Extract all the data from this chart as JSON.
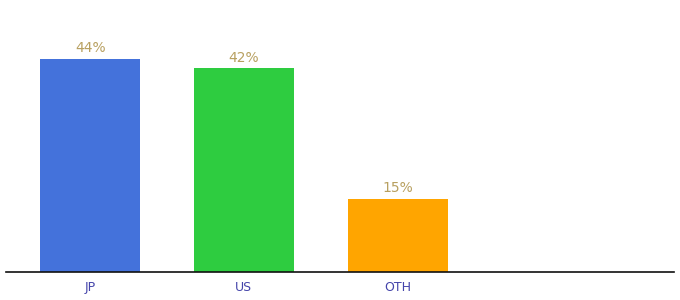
{
  "categories": [
    "JP",
    "US",
    "OTH"
  ],
  "values": [
    44,
    42,
    15
  ],
  "bar_colors": [
    "#4472db",
    "#2ecc40",
    "#ffa500"
  ],
  "labels": [
    "44%",
    "42%",
    "15%"
  ],
  "label_color": "#b8a060",
  "ylim": [
    0,
    55
  ],
  "background_color": "#ffffff",
  "label_fontsize": 10,
  "tick_fontsize": 9,
  "tick_color": "#4444aa",
  "bar_width": 0.65,
  "spine_color": "#111111",
  "xlim": [
    -0.55,
    3.8
  ]
}
